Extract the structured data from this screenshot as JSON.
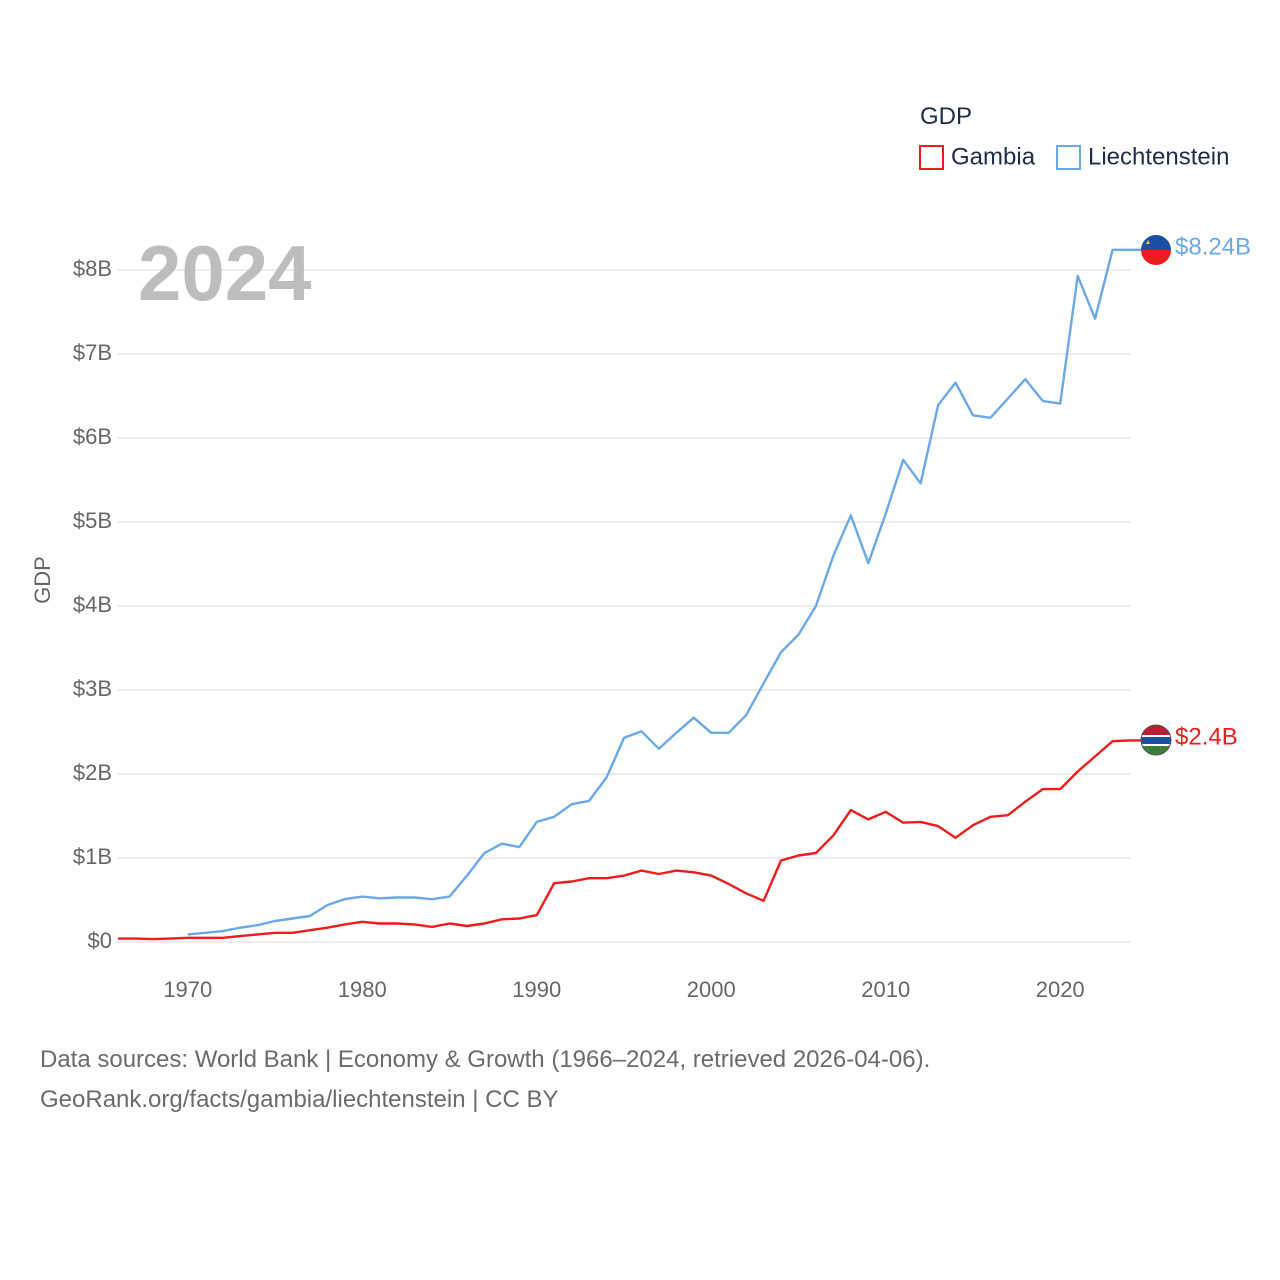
{
  "colors": {
    "gambia": "#ee1c1c",
    "liechtenstein": "#6aa8e6",
    "grid": "#e6e6e6",
    "axis_text": "#666666",
    "legend_text": "#1f2d4a",
    "year_watermark": "#bdbdbd"
  },
  "year_label": "2024",
  "legend": {
    "title": "GDP",
    "items": [
      "Gambia",
      "Liechtenstein"
    ]
  },
  "end_labels": {
    "gambia": "$2.4B",
    "liechtenstein": "$8.24B"
  },
  "footer": {
    "line1": "Data sources: World Bank | Economy & Growth (1966–2024, retrieved 2026-04-06).",
    "line2": "GeoRank.org/facts/gambia/liechtenstein | CC BY"
  },
  "chart_data": {
    "type": "line",
    "title": "",
    "xlabel": "",
    "ylabel": "GDP",
    "xlim": [
      1966,
      2024
    ],
    "ylim": [
      0,
      8.5
    ],
    "y_ticks": [
      0,
      1,
      2,
      3,
      4,
      5,
      6,
      7,
      8
    ],
    "y_tick_labels": [
      "$0",
      "$1B",
      "$2B",
      "$3B",
      "$4B",
      "$5B",
      "$6B",
      "$7B",
      "$8B"
    ],
    "x_ticks": [
      1970,
      1980,
      1990,
      2000,
      2010,
      2020
    ],
    "x_tick_labels": [
      "1970",
      "1980",
      "1990",
      "2000",
      "2010",
      "2020"
    ],
    "grid": true,
    "legend_position": "top-right",
    "units": "billions USD",
    "series": [
      {
        "name": "Gambia",
        "x": [
          1966,
          1967,
          1968,
          1969,
          1970,
          1971,
          1972,
          1973,
          1974,
          1975,
          1976,
          1977,
          1978,
          1979,
          1980,
          1981,
          1982,
          1983,
          1984,
          1985,
          1986,
          1987,
          1988,
          1989,
          1990,
          1991,
          1992,
          1993,
          1994,
          1995,
          1996,
          1997,
          1998,
          1999,
          2000,
          2001,
          2002,
          2003,
          2004,
          2005,
          2006,
          2007,
          2008,
          2009,
          2010,
          2011,
          2012,
          2013,
          2014,
          2015,
          2016,
          2017,
          2018,
          2019,
          2020,
          2021,
          2022,
          2023,
          2024
        ],
        "values": [
          0.04,
          0.04,
          0.035,
          0.04,
          0.05,
          0.05,
          0.05,
          0.07,
          0.09,
          0.11,
          0.11,
          0.14,
          0.17,
          0.21,
          0.24,
          0.22,
          0.22,
          0.21,
          0.18,
          0.22,
          0.19,
          0.22,
          0.27,
          0.28,
          0.32,
          0.7,
          0.72,
          0.76,
          0.76,
          0.79,
          0.85,
          0.81,
          0.85,
          0.83,
          0.79,
          0.69,
          0.58,
          0.49,
          0.97,
          1.03,
          1.06,
          1.27,
          1.57,
          1.46,
          1.55,
          1.42,
          1.43,
          1.38,
          1.24,
          1.39,
          1.49,
          1.51,
          1.67,
          1.82,
          1.82,
          2.03,
          2.21,
          2.39,
          2.4
        ]
      },
      {
        "name": "Liechtenstein",
        "x": [
          1970,
          1971,
          1972,
          1973,
          1974,
          1975,
          1976,
          1977,
          1978,
          1979,
          1980,
          1981,
          1982,
          1983,
          1984,
          1985,
          1986,
          1987,
          1988,
          1989,
          1990,
          1991,
          1992,
          1993,
          1994,
          1995,
          1996,
          1997,
          1998,
          1999,
          2000,
          2001,
          2002,
          2003,
          2004,
          2005,
          2006,
          2007,
          2008,
          2009,
          2010,
          2011,
          2012,
          2013,
          2014,
          2015,
          2016,
          2017,
          2018,
          2019,
          2020,
          2021,
          2022,
          2023,
          2024
        ],
        "values": [
          0.09,
          0.11,
          0.13,
          0.17,
          0.2,
          0.25,
          0.28,
          0.31,
          0.44,
          0.51,
          0.54,
          0.52,
          0.53,
          0.53,
          0.51,
          0.54,
          0.79,
          1.06,
          1.17,
          1.13,
          1.43,
          1.49,
          1.64,
          1.68,
          1.96,
          2.43,
          2.51,
          2.3,
          2.49,
          2.67,
          2.49,
          2.49,
          2.7,
          3.08,
          3.45,
          3.66,
          4.0,
          4.6,
          5.08,
          4.51,
          5.1,
          5.74,
          5.46,
          6.39,
          6.66,
          6.27,
          6.24,
          6.47,
          6.7,
          6.44,
          6.41,
          7.93,
          7.42,
          8.24,
          8.24
        ]
      }
    ]
  }
}
